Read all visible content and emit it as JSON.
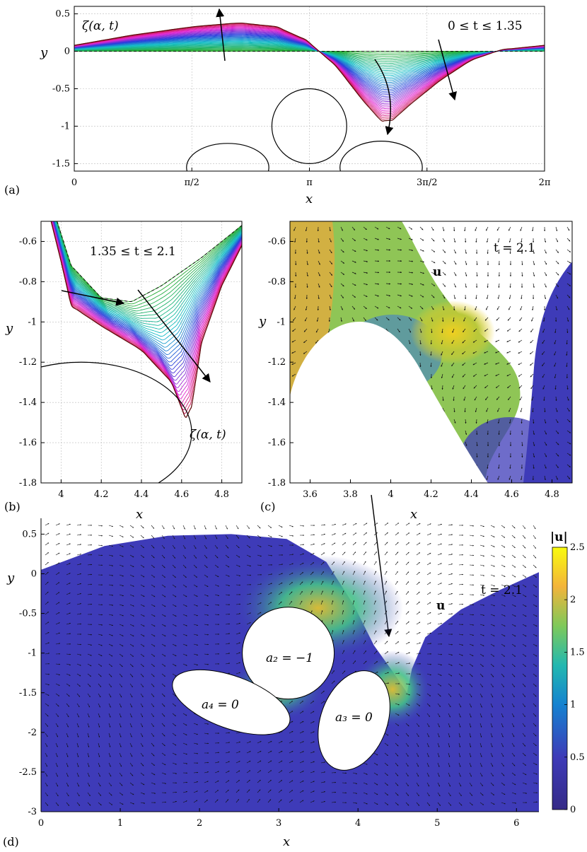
{
  "chart_data": [
    {
      "panel": "(a)",
      "type": "line",
      "xlabel": "x",
      "ylabel": "y",
      "xlim": [
        0,
        6.2832
      ],
      "ylim": [
        -1.6,
        0.6
      ],
      "xticks": [
        "0",
        "π/2",
        "π",
        "3π/2",
        "2π"
      ],
      "yticks": [
        "0.5",
        "0",
        "-0.5",
        "-1",
        "-1.5"
      ],
      "grid": true,
      "annotations": [
        "ζ(α, t)",
        "0 ≤ t ≤ 1.35"
      ],
      "series": [
        {
          "role": "initial",
          "points": [
            [
              0,
              0
            ],
            [
              6.2832,
              0
            ]
          ]
        },
        {
          "role": "final",
          "points": [
            [
              0,
              0.08
            ],
            [
              0.8,
              0.22
            ],
            [
              1.6,
              0.33
            ],
            [
              2.2,
              0.38
            ],
            [
              2.7,
              0.33
            ],
            [
              3.1,
              0.15
            ],
            [
              3.5,
              -0.2
            ],
            [
              3.85,
              -0.65
            ],
            [
              4.1,
              -0.93
            ],
            [
              4.25,
              -0.92
            ],
            [
              4.5,
              -0.7
            ],
            [
              4.9,
              -0.38
            ],
            [
              5.3,
              -0.12
            ],
            [
              5.7,
              0.02
            ],
            [
              6.2832,
              0.08
            ]
          ]
        }
      ],
      "obstacles": [
        {
          "shape": "circle",
          "cx": 3.14,
          "cy": -1.0,
          "r": 0.5
        },
        {
          "shape": "ellipse",
          "cx": 2.05,
          "cy": -1.55,
          "rx": 0.55,
          "ry": 0.32
        },
        {
          "shape": "ellipse",
          "cx": 4.1,
          "cy": -1.55,
          "rx": 0.55,
          "ry": 0.35
        }
      ]
    },
    {
      "panel": "(b)",
      "type": "line",
      "xlabel": "x",
      "ylabel": "y",
      "xlim": [
        3.9,
        4.9
      ],
      "ylim": [
        -1.8,
        -0.5
      ],
      "xticks": [
        "4",
        "4.2",
        "4.4",
        "4.6",
        "4.8"
      ],
      "yticks": [
        "-0.6",
        "-0.8",
        "-1",
        "-1.2",
        "-1.4",
        "-1.6",
        "-1.8"
      ],
      "grid": true,
      "annotations": [
        "1.35 ≤ t ≤ 2.1",
        "ζ(α, t)"
      ],
      "series": [
        {
          "role": "initial",
          "points": [
            [
              3.98,
              -0.5
            ],
            [
              4.05,
              -0.72
            ],
            [
              4.2,
              -0.88
            ],
            [
              4.35,
              -0.9
            ],
            [
              4.5,
              -0.82
            ],
            [
              4.7,
              -0.68
            ],
            [
              4.9,
              -0.52
            ]
          ]
        },
        {
          "role": "final",
          "points": [
            [
              3.95,
              -0.5
            ],
            [
              4.0,
              -0.7
            ],
            [
              4.05,
              -0.92
            ],
            [
              4.2,
              -1.02
            ],
            [
              4.4,
              -1.14
            ],
            [
              4.55,
              -1.3
            ],
            [
              4.62,
              -1.48
            ],
            [
              4.65,
              -1.42
            ],
            [
              4.7,
              -1.1
            ],
            [
              4.8,
              -0.82
            ],
            [
              4.9,
              -0.62
            ]
          ]
        }
      ],
      "obstacles": [
        {
          "shape": "ellipse",
          "cx": 4.1,
          "cy": -1.55,
          "rx": 0.55,
          "ry": 0.35
        }
      ]
    },
    {
      "panel": "(c)",
      "type": "heatmap",
      "xlabel": "x",
      "ylabel": "y",
      "xlim": [
        3.5,
        4.9
      ],
      "ylim": [
        -1.8,
        -0.5
      ],
      "xticks": [
        "3.6",
        "3.8",
        "4",
        "4.2",
        "4.4",
        "4.6",
        "4.8"
      ],
      "yticks": [
        "-0.6",
        "-0.8",
        "-1",
        "-1.2",
        "-1.4",
        "-1.6",
        "-1.8"
      ],
      "annotations": [
        "t = 2.1",
        "u"
      ]
    },
    {
      "panel": "(d)",
      "type": "heatmap",
      "xlabel": "x",
      "ylabel": "y",
      "xlim": [
        0,
        6.2832
      ],
      "ylim": [
        -3,
        0.7
      ],
      "xticks": [
        "0",
        "1",
        "2",
        "3",
        "4",
        "5",
        "6"
      ],
      "yticks": [
        "0.5",
        "0",
        "-0.5",
        "-1",
        "-1.5",
        "-2",
        "-2.5",
        "-3"
      ],
      "annotations": [
        "t = 2.1",
        "u",
        "a₂ = −1",
        "a₃ = 0",
        "a₄ = 0"
      ],
      "colorbar": {
        "label": "|u|",
        "ticks": [
          "2.5",
          "2",
          "1.5",
          "1",
          "0.5",
          "0"
        ],
        "range": [
          0,
          2.5
        ]
      }
    }
  ],
  "panel_labels": {
    "a": "(a)",
    "b": "(b)",
    "c": "(c)",
    "d": "(d)"
  },
  "labels": {
    "a_x": "x",
    "a_y": "y",
    "a_zeta": "ζ(α, t)",
    "a_time": "0 ≤ t ≤ 1.35",
    "b_x": "x",
    "b_y": "y",
    "b_time": "1.35 ≤ t ≤ 2.1",
    "b_zeta": "ζ(α, t)",
    "c_x": "x",
    "c_y": "y",
    "c_time": "t = 2.1",
    "c_u": "u",
    "d_x": "x",
    "d_y": "y",
    "d_time": "t = 2.1",
    "d_u": "u",
    "d_a2": "a₂ = −1",
    "d_a3": "a₃ = 0",
    "d_a4": "a₄ = 0",
    "cbar_title": "|u|"
  },
  "colors": {
    "field_low": "#3e3bb8",
    "field_mid": "#22b8b0",
    "field_high": "#f0d020",
    "colormap": "parula"
  }
}
